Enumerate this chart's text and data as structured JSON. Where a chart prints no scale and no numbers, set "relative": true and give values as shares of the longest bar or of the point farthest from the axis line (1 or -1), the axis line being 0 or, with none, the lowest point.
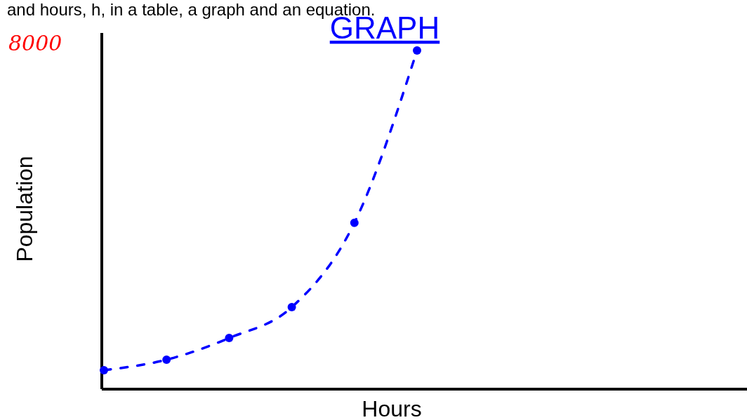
{
  "chart_data": {
    "type": "line",
    "title": "GRAPH",
    "xlabel": "Hours",
    "ylabel": "Population",
    "relative": true,
    "annotations": [
      "and hours, h, in a table, a graph and an equation.",
      "8000"
    ],
    "categories": [
      null,
      null,
      null,
      null,
      null,
      null
    ],
    "series": [
      {
        "color": "#0000ff",
        "values": [
          0.056,
          0.087,
          0.151,
          0.242,
          0.491,
          1
        ]
      }
    ],
    "marker": "circle",
    "line_style": "dashed",
    "grid": false
  }
}
